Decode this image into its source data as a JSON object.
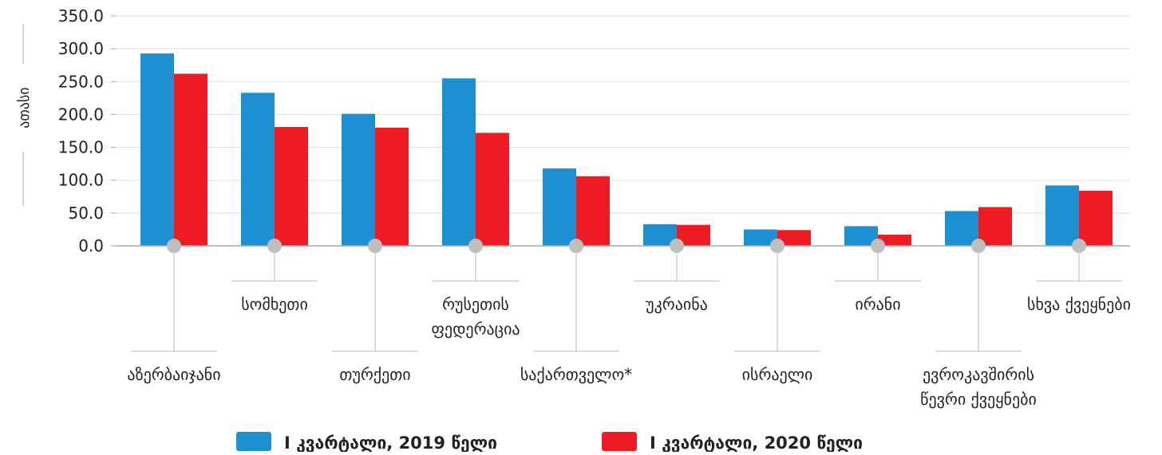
{
  "chart_data": {
    "type": "bar",
    "title": "",
    "xlabel": "",
    "ylabel": "ათასი",
    "ylim": [
      0,
      350
    ],
    "y_tick_values": [
      0,
      50,
      100,
      150,
      200,
      250,
      300,
      350
    ],
    "y_tick_labels": [
      "0.0",
      "50.0",
      "100.0",
      "150.0",
      "200.0",
      "250.0",
      "300.0",
      "350.0"
    ],
    "grid": true,
    "legend_position": "bottom",
    "categories": [
      [
        "აზერბაიჯანი"
      ],
      [
        "სომხეთი"
      ],
      [
        "თურქეთი"
      ],
      [
        "რუსეთის",
        "ფედერაცია"
      ],
      [
        "საქართველო*"
      ],
      [
        "უკრაინა"
      ],
      [
        "ისრაელი"
      ],
      [
        "ირანი"
      ],
      [
        "ევროკავშირის",
        "წევრი ქვეყნები"
      ],
      [
        "სხვა ქვეყნები"
      ]
    ],
    "label_positions": [
      "low",
      "high",
      "low",
      "high",
      "low",
      "high",
      "low",
      "high",
      "low",
      "high"
    ],
    "series": [
      {
        "name": "I კვარტალი, 2019 წელი",
        "color": "#1E90D2",
        "values": [
          293,
          233,
          201,
          255,
          118,
          33,
          25,
          30,
          53,
          92
        ]
      },
      {
        "name": "I კვარტალი, 2020 წელი",
        "color": "#ED1C24",
        "values": [
          262,
          181,
          180,
          172,
          106,
          32,
          24,
          17,
          59,
          84
        ]
      }
    ],
    "colors": {
      "grid": "#DDDDDD",
      "axis": "#AAAAAA",
      "marker": "#BFBFBF",
      "leader": "#C8C8C8"
    }
  }
}
